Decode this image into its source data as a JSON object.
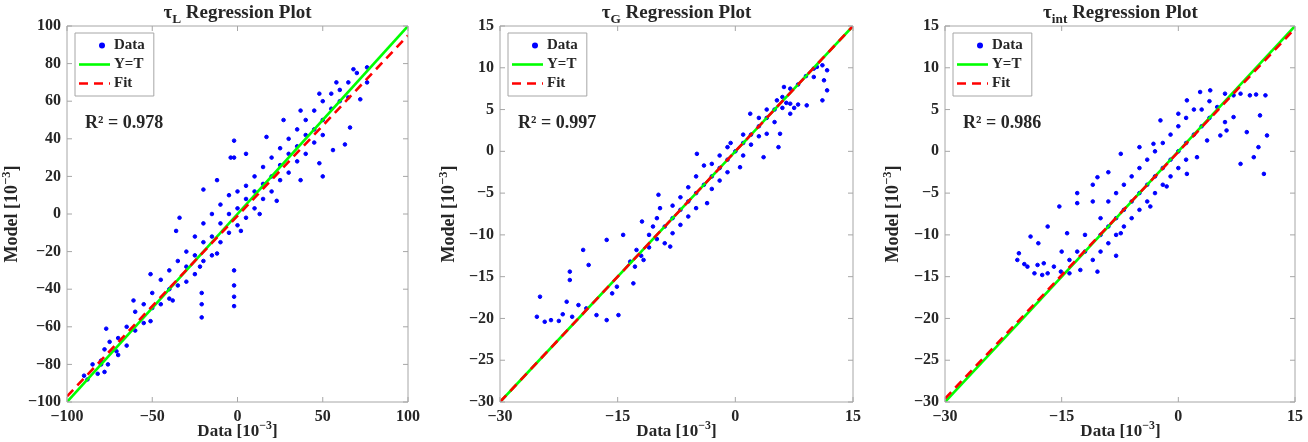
{
  "chart_data": [
    {
      "type": "scatter",
      "title": "τ$_{L}$ Regression Plot",
      "xlabel": "Data [10$^{−3}$]",
      "ylabel": "Model [10$^{−3}$]",
      "xlim": [
        -100,
        100
      ],
      "ylim": [
        -100,
        100
      ],
      "xticks": [
        -100,
        -50,
        0,
        50,
        100
      ],
      "yticks": [
        -100,
        -80,
        -60,
        -40,
        -20,
        0,
        20,
        40,
        60,
        80,
        100
      ],
      "legend": "top left",
      "marker": "circle",
      "annotations": [
        "R² = 0.978"
      ],
      "series": [
        {
          "name": "Data",
          "color": "#0000ff",
          "x": [
            -77,
            -61,
            -51,
            -36,
            -34,
            -20,
            -12,
            -4,
            5,
            17,
            27,
            37,
            48,
            58,
            68,
            76,
            -71,
            -51,
            -38,
            -22,
            -12,
            2,
            13,
            23,
            37,
            48,
            56,
            66,
            72,
            76,
            -88,
            -85,
            -82,
            -80,
            -78,
            -75,
            -76,
            -90,
            -2,
            -2,
            -2,
            -2,
            -2,
            -2,
            -21,
            -21,
            -21,
            50,
            63,
            -78,
            -80,
            -70,
            -70,
            -65,
            -65,
            -60,
            -60,
            -55,
            -55,
            -50,
            -50,
            -45,
            -45,
            -40,
            -40,
            -40,
            -35,
            -35,
            -30,
            -30,
            -30,
            -25,
            -25,
            -25,
            -20,
            -20,
            -20,
            -15,
            -15,
            -15,
            -10,
            -10,
            -10,
            -5,
            -5,
            -5,
            0,
            0,
            0,
            5,
            5,
            5,
            10,
            10,
            10,
            15,
            15,
            15,
            20,
            20,
            20,
            25,
            25,
            25,
            30,
            30,
            30,
            35,
            35,
            35,
            40,
            40,
            40,
            45,
            45,
            45,
            50,
            50,
            50,
            55,
            55,
            60,
            60,
            65,
            65,
            70
          ],
          "values": [
            -61,
            -46,
            -32,
            -9,
            -2,
            13,
            18,
            30,
            32,
            41,
            50,
            55,
            64,
            70,
            77,
            78,
            -73,
            -57,
            -46,
            -28,
            -21,
            -9,
            0,
            7,
            18,
            27,
            34,
            46,
            61,
            70,
            -88,
            -80,
            -85,
            -78,
            -72,
            -68,
            -80,
            -86,
            39,
            30,
            -30,
            -38,
            -44,
            -49,
            -42,
            -48,
            -55,
            20,
            37,
            -84,
            -80,
            -66,
            -75,
            -60,
            -70,
            -52,
            -62,
            -48,
            -58,
            -42,
            -50,
            -35,
            -48,
            -30,
            -40,
            -45,
            -25,
            -38,
            -20,
            -28,
            -36,
            -12,
            -22,
            -32,
            -5,
            -15,
            -25,
            0,
            -12,
            -22,
            5,
            -5,
            -15,
            10,
            0,
            -10,
            12,
            3,
            -6,
            15,
            8,
            -2,
            20,
            12,
            3,
            25,
            16,
            8,
            30,
            20,
            12,
            35,
            26,
            18,
            40,
            32,
            22,
            45,
            36,
            28,
            50,
            42,
            32,
            55,
            45,
            38,
            60,
            50,
            42,
            64,
            56,
            66,
            60,
            70,
            62,
            75
          ]
        },
        {
          "name": "Y=T",
          "type": "line",
          "marker": "none",
          "color": "#00ff00",
          "x": [
            -100,
            100
          ],
          "values": [
            -100,
            100
          ]
        },
        {
          "name": "Fit",
          "type": "line",
          "marker": "none",
          "line_style": "dashed",
          "color": "#ff0000",
          "x": [
            -100,
            100
          ],
          "values": [
            -97,
            95
          ]
        }
      ]
    },
    {
      "type": "scatter",
      "title": "τ$_{G}$ Regression Plot",
      "xlabel": "Data [10$^{−3}$]",
      "ylabel": "Model [10$^{−3}$]",
      "xlim": [
        -30,
        15
      ],
      "ylim": [
        -30,
        15
      ],
      "xticks": [
        -30,
        -15,
        0,
        15
      ],
      "yticks": [
        -30,
        -25,
        -20,
        -15,
        -10,
        -5,
        0,
        5,
        10,
        15
      ],
      "legend": "top left",
      "marker": "circle",
      "annotations": [
        "R² = 0.997"
      ],
      "series": [
        {
          "name": "Data",
          "color": "#0000ff",
          "x": [
            -24.9,
            -25.3,
            -24.3,
            -23.5,
            -22.5,
            -21.1,
            -21.1,
            -19.4,
            -18.7,
            -21.5,
            -20,
            -17.7,
            -16.4,
            -14.3,
            -15.1,
            -15.7,
            -14.9,
            -16.4,
            -13,
            -11.9,
            -9.8,
            -4.9,
            3.6,
            5.5,
            -22,
            -20.8,
            -19,
            -13.4,
            -12.6,
            -12.8,
            -11.7,
            -12,
            -11,
            -11,
            -10.5,
            -10,
            -10,
            -9.6,
            -9,
            -9,
            -8.3,
            -8,
            -8,
            -8,
            -7,
            -7,
            -7,
            -6,
            -6,
            -6,
            -5,
            -5,
            -5,
            -4,
            -4,
            -3.6,
            -3,
            -3,
            -3,
            -2,
            -2,
            -2,
            -1,
            -1,
            -1,
            -0.6,
            0,
            0.6,
            1,
            1,
            1,
            1.9,
            2,
            2,
            3,
            3,
            3,
            4,
            4,
            4,
            5.3,
            5,
            5.7,
            5,
            7,
            9.1,
            8,
            6.5,
            6,
            7.5,
            10,
            10.4,
            11.1,
            11.7,
            10,
            11.3,
            11.7,
            11.1,
            7,
            6.2,
            8,
            9,
            6,
            7
          ],
          "values": [
            -17.4,
            -19.8,
            -20.4,
            -20.2,
            -20.3,
            -14.4,
            -15.4,
            -11.8,
            -13.6,
            -18,
            -18.4,
            -19.6,
            -10.6,
            -10,
            -16.2,
            -17,
            -19.6,
            -20.2,
            -15.8,
            -8.4,
            -5.2,
            -0.3,
            -0.7,
            0.5,
            -19.5,
            -19.8,
            -18.8,
            -13.2,
            -11.8,
            -13.8,
            -13,
            -12.5,
            -10,
            -11.5,
            -9,
            -8,
            -10.5,
            -6.8,
            -9,
            -11,
            -11.4,
            -6.5,
            -8,
            -9.8,
            -5.5,
            -7,
            -8.8,
            -4.3,
            -6,
            -7.8,
            -3,
            -5,
            -6.8,
            -1.7,
            -4,
            -6.2,
            -1.5,
            -3,
            -4.5,
            -0.5,
            -2,
            -3.5,
            0.5,
            -1,
            -2.5,
            1,
            0,
            -1.9,
            2,
            1,
            -0.5,
            4.5,
            2,
            0.8,
            4,
            3,
            1.8,
            5,
            4,
            2.1,
            6.1,
            5,
            2.1,
            3.5,
            5.7,
            5.5,
            5.6,
            5.8,
            5.2,
            5.2,
            9.9,
            10.1,
            10.3,
            9.7,
            8.9,
            8.5,
            7.3,
            6.1,
            7.5,
            7.7,
            8,
            9,
            6.5,
            4.5
          ]
        },
        {
          "name": "Y=T",
          "type": "line",
          "marker": "none",
          "color": "#00ff00",
          "x": [
            -30,
            15
          ],
          "values": [
            -30,
            15
          ]
        },
        {
          "name": "Fit",
          "type": "line",
          "marker": "none",
          "line_style": "dashed",
          "color": "#ff0000",
          "x": [
            -30,
            15
          ],
          "values": [
            -30,
            15
          ]
        }
      ]
    },
    {
      "type": "scatter",
      "title": "τ$_{int}$ Regression Plot",
      "xlabel": "Data [10$^{−3}$]",
      "ylabel": "Model [10$^{−3}$]",
      "xlim": [
        -30,
        15
      ],
      "ylim": [
        -30,
        15
      ],
      "xticks": [
        -30,
        -15,
        0,
        15
      ],
      "yticks": [
        -30,
        -25,
        -20,
        -15,
        -10,
        -5,
        0,
        5,
        10,
        15
      ],
      "legend": "top left",
      "marker": "circle",
      "annotations": [
        "R² = 0.986"
      ],
      "series": [
        {
          "name": "Data",
          "color": "#0000ff",
          "x": [
            -20.7,
            -20.5,
            -19,
            -19.4,
            -18.5,
            -16.8,
            -15.1,
            -18.1,
            -17.3,
            -16.8,
            -15.3,
            -13,
            -10.4,
            -13,
            -17.5,
            -19.8,
            -16,
            -14,
            -18,
            -15,
            -12.6,
            -10.4,
            -14.3,
            -7.4,
            -3.2,
            -2.3,
            1.1,
            2.8,
            4.1,
            -7.4,
            -3.6,
            -1.5,
            1.1,
            2.4,
            3.7,
            -11,
            -9,
            -5,
            0,
            -8,
            7.1,
            9.2,
            11.2,
            8,
            10,
            6,
            7.1,
            10.5,
            11.4,
            9.7,
            8,
            11,
            8.8,
            5.4,
            6.2,
            5,
            6,
            10.3,
            -12,
            -12,
            -11,
            -10,
            -10,
            -10,
            -9,
            -9,
            -9,
            -8,
            -8,
            -8,
            -7,
            -7,
            -7,
            -6,
            -6,
            -6,
            -5,
            -5,
            -5,
            -4,
            -4,
            -4,
            -3,
            -3,
            -3,
            -2,
            -2,
            -2,
            -1,
            -1,
            -1,
            0,
            0,
            0,
            1,
            1,
            1,
            2,
            2,
            3,
            3,
            4,
            4,
            -11,
            -13,
            -14
          ],
          "values": [
            -13,
            -12.2,
            -10.2,
            -13.8,
            -14.6,
            -14.6,
            -14.4,
            -13.6,
            -13.4,
            -9,
            -6.6,
            -6.2,
            -3.1,
            -5,
            -14.8,
            -13.5,
            -13.8,
            -14.6,
            -11,
            -12,
            -14.2,
            -14.4,
            -9.8,
            -0.3,
            0.9,
            3.7,
            6.1,
            7.1,
            7.3,
            -9.8,
            -6.6,
            -4.2,
            -2.7,
            -0.7,
            1.3,
            -4,
            -2.5,
            0.5,
            4.5,
            -12.5,
            6.7,
            6.7,
            6.7,
            6.9,
            6.8,
            6.9,
            4.1,
            4.3,
            1.9,
            -0.7,
            -1.5,
            -2.7,
            2.3,
            1.9,
            2.5,
            5.3,
            3.5,
            0.5,
            -12,
            -10,
            -13,
            -10,
            -8,
            -12,
            -6,
            -9,
            -11,
            -5,
            -8,
            -10,
            -4,
            -7,
            -9,
            -3,
            -6,
            -8,
            -2,
            -5,
            -7,
            -1,
            -4,
            -6,
            0,
            -3,
            -5,
            1,
            -2,
            -4,
            2,
            -1,
            -3,
            3,
            0,
            -2,
            4,
            1,
            -1,
            5,
            2,
            5,
            3,
            4,
            6,
            -6,
            -12,
            -13
          ]
        },
        {
          "name": "Y=T",
          "type": "line",
          "marker": "none",
          "color": "#00ff00",
          "x": [
            -30,
            15
          ],
          "values": [
            -30,
            15
          ]
        },
        {
          "name": "Fit",
          "type": "line",
          "marker": "none",
          "line_style": "dashed",
          "color": "#ff0000",
          "x": [
            -30,
            15
          ],
          "values": [
            -29.6,
            14.7
          ]
        }
      ]
    }
  ]
}
